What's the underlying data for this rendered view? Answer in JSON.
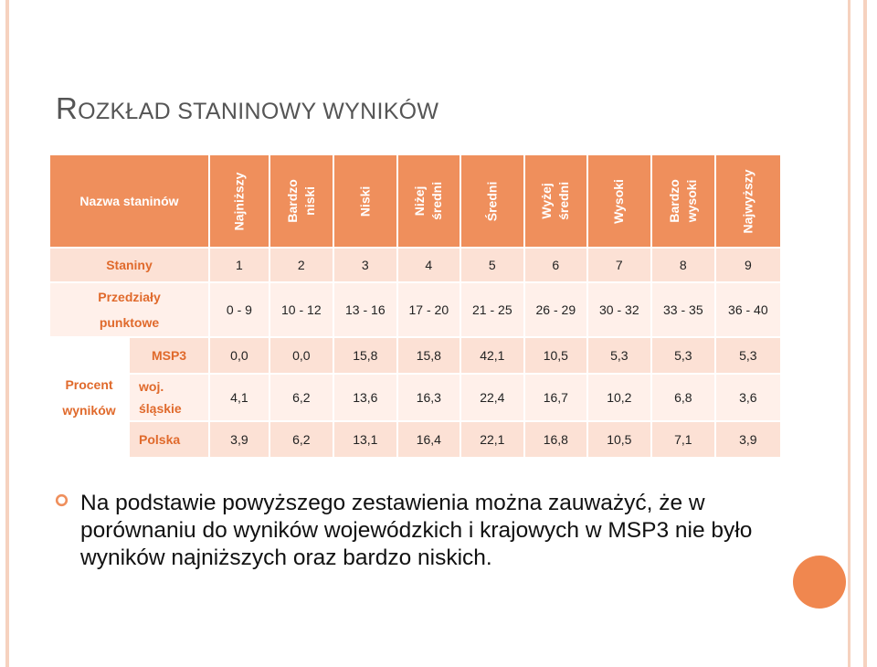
{
  "title": {
    "first_big": "R",
    "first_small": "OZKŁAD STANINOWY WYNIKÓW"
  },
  "table": {
    "header_label": "Nazwa staninów",
    "stanine_names": [
      [
        "Najniższy"
      ],
      [
        "Bardzo",
        "niski"
      ],
      [
        "Niski"
      ],
      [
        "Niżej",
        "średni"
      ],
      [
        "Średni"
      ],
      [
        "Wyżej",
        "średni"
      ],
      [
        "Wysoki"
      ],
      [
        "Bardzo",
        "wysoki"
      ],
      [
        "Najwyższy"
      ]
    ],
    "staniny_label": "Staniny",
    "staniny": [
      "1",
      "2",
      "3",
      "4",
      "5",
      "6",
      "7",
      "8",
      "9"
    ],
    "przedzialy_label": [
      "Przedziały",
      "punktowe"
    ],
    "przedzialy": [
      "0 - 9",
      "10 - 12",
      "13 - 16",
      "17 - 20",
      "21 - 25",
      "26 - 29",
      "30 - 32",
      "33 - 35",
      "36 - 40"
    ],
    "procent_label": [
      "Procent",
      "wyników"
    ],
    "rows": [
      {
        "label": [
          "MSP3"
        ],
        "values": [
          "0,0",
          "0,0",
          "15,8",
          "15,8",
          "42,1",
          "10,5",
          "5,3",
          "5,3",
          "5,3"
        ]
      },
      {
        "label": [
          "woj.",
          "śląskie"
        ],
        "values": [
          "4,1",
          "6,2",
          "13,6",
          "16,3",
          "22,4",
          "16,7",
          "10,2",
          "6,8",
          "3,6"
        ]
      },
      {
        "label": [
          "Polska"
        ],
        "values": [
          "3,9",
          "6,2",
          "13,1",
          "16,4",
          "22,1",
          "16,8",
          "10,5",
          "7,1",
          "3,9"
        ]
      }
    ]
  },
  "body_text": "Na podstawie powyższego zestawienia można zauważyć, że w porównaniu do wyników wojewódzkich i krajowych w MSP3 nie było wyników najniższych oraz bardzo niskich.",
  "colors": {
    "accent": "#ef8f5c",
    "label": "#e06a2c",
    "row_dark": "#fce1d5",
    "row_light": "#fff0ea"
  }
}
